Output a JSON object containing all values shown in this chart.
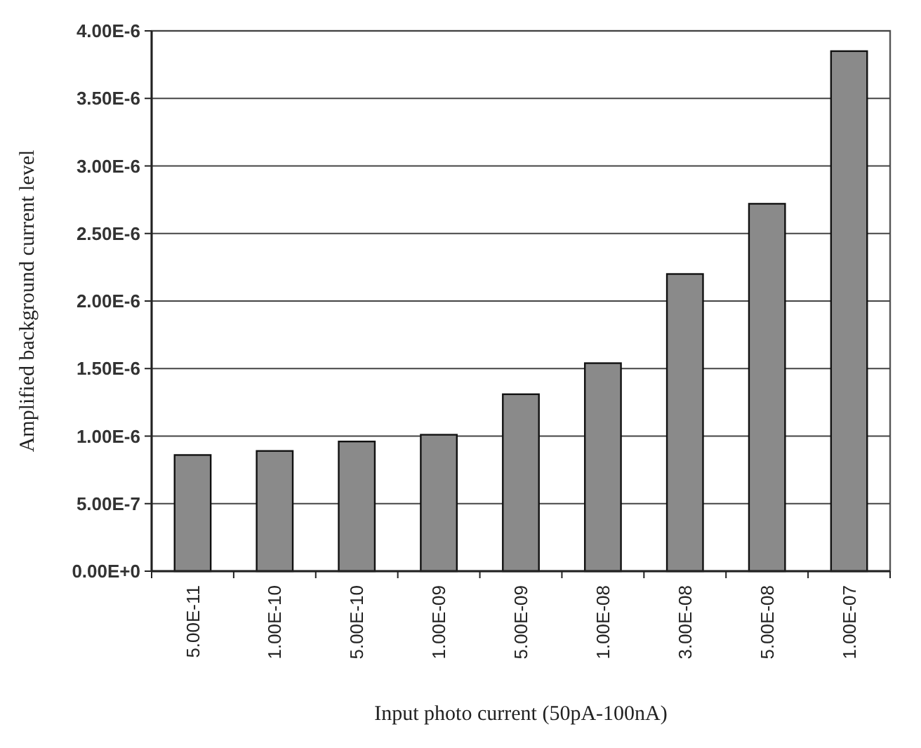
{
  "chart_data": {
    "type": "bar",
    "xlabel": "Input photo current (50pA-100nA)",
    "ylabel": "Amplified background current level",
    "categories": [
      "5.00E-11",
      "1.00E-10",
      "5.00E-10",
      "1.00E-09",
      "5.00E-09",
      "1.00E-08",
      "3.00E-08",
      "5.00E-08",
      "1.00E-07"
    ],
    "values": [
      8.6e-07,
      8.9e-07,
      9.6e-07,
      1.01e-06,
      1.31e-06,
      1.54e-06,
      2.2e-06,
      2.72e-06,
      3.85e-06
    ],
    "color": "#8a8a8a",
    "ylim": [
      0,
      4e-06
    ],
    "yticks": [
      {
        "value": 0,
        "label": "0.00E+0"
      },
      {
        "value": 5e-07,
        "label": "5.00E-7"
      },
      {
        "value": 1e-06,
        "label": "1.00E-6"
      },
      {
        "value": 1.5e-06,
        "label": "1.50E-6"
      },
      {
        "value": 2e-06,
        "label": "2.00E-6"
      },
      {
        "value": 2.5e-06,
        "label": "2.50E-6"
      },
      {
        "value": 3e-06,
        "label": "3.00E-6"
      },
      {
        "value": 3.5e-06,
        "label": "3.50E-6"
      },
      {
        "value": 4e-06,
        "label": "4.00E-6"
      }
    ],
    "grid": "y"
  }
}
